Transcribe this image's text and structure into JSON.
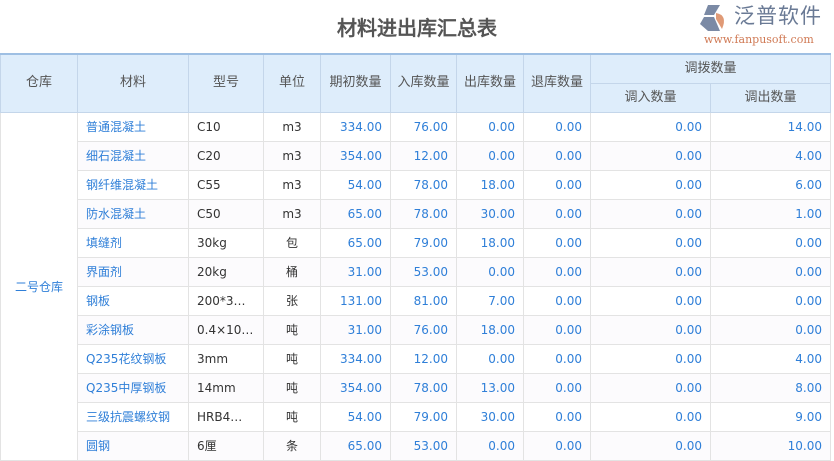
{
  "title": "材料进出库汇总表",
  "columns": {
    "warehouse": "仓库",
    "material": "材料",
    "model": "型号",
    "unit": "单位",
    "opening": "期初数量",
    "in": "入库数量",
    "out": "出库数量",
    "return": "退库数量",
    "transfer": "调拨数量",
    "transfer_in": "调入数量",
    "transfer_out": "调出数量"
  },
  "warehouse": "二号仓库",
  "rows": [
    [
      "普通混凝土",
      "C10",
      "m3",
      "334.00",
      "76.00",
      "0.00",
      "0.00",
      "0.00",
      "14.00"
    ],
    [
      "细石混凝土",
      "C20",
      "m3",
      "354.00",
      "12.00",
      "0.00",
      "0.00",
      "0.00",
      "4.00"
    ],
    [
      "钢纤维混凝土",
      "C55",
      "m3",
      "54.00",
      "78.00",
      "18.00",
      "0.00",
      "0.00",
      "6.00"
    ],
    [
      "防水混凝土",
      "C50",
      "m3",
      "65.00",
      "78.00",
      "30.00",
      "0.00",
      "0.00",
      "1.00"
    ],
    [
      "填缝剂",
      "30kg",
      "包",
      "65.00",
      "79.00",
      "18.00",
      "0.00",
      "0.00",
      "0.00"
    ],
    [
      "界面剂",
      "20kg",
      "桶",
      "31.00",
      "53.00",
      "0.00",
      "0.00",
      "0.00",
      "0.00"
    ],
    [
      "钢板",
      "200*3…",
      "张",
      "131.00",
      "81.00",
      "7.00",
      "0.00",
      "0.00",
      "0.00"
    ],
    [
      "彩涂钢板",
      "0.4×10…",
      "吨",
      "31.00",
      "76.00",
      "18.00",
      "0.00",
      "0.00",
      "0.00"
    ],
    [
      "Q235花纹钢板",
      "3mm",
      "吨",
      "334.00",
      "12.00",
      "0.00",
      "0.00",
      "0.00",
      "4.00"
    ],
    [
      "Q235中厚钢板",
      "14mm",
      "吨",
      "354.00",
      "78.00",
      "13.00",
      "0.00",
      "0.00",
      "8.00"
    ],
    [
      "三级抗震螺纹钢",
      "HRB4…",
      "吨",
      "54.00",
      "79.00",
      "30.00",
      "0.00",
      "0.00",
      "9.00"
    ],
    [
      "圆钢",
      "6厘",
      "条",
      "65.00",
      "53.00",
      "0.00",
      "0.00",
      "0.00",
      "10.00"
    ]
  ],
  "watermark": {
    "name": "泛普软件",
    "url": "www.fanpusoft.com",
    "colors": {
      "grey": "#6a7a95",
      "orange": "#d07a55"
    }
  }
}
